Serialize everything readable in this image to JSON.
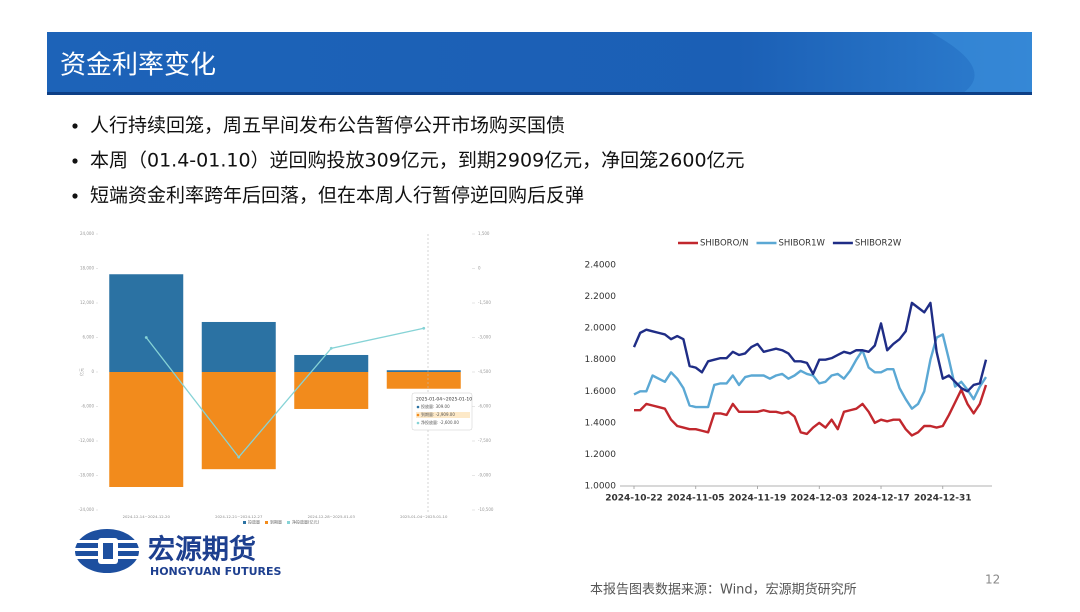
{
  "header": {
    "title": "资金利率变化"
  },
  "bullets": [
    "人行持续回笼，周五早间发布公告暂停公开市场购买国债",
    "本周（01.4-01.10）逆回购投放309亿元，到期2909亿元，净回笼2600亿元",
    "短端资金利率跨年后回落，但在本周人行暂停逆回购后反弹"
  ],
  "chart_data": [
    {
      "type": "bar",
      "ylabel": "亿元",
      "categories": [
        "2024-12-14~2024-12-20",
        "2024-12-21~2024-12-27",
        "2024-12-28~2025-01-03",
        "2025-01-04~2025-01-10"
      ],
      "series": [
        {
          "name": "投放量",
          "color": "#2b72a3",
          "values": [
            17000,
            8700,
            2960,
            309
          ]
        },
        {
          "name": "到期量",
          "color": "#f28b1c",
          "values": [
            -20000,
            -16900,
            -6430,
            -2909
          ]
        },
        {
          "name": "净投放量(亿元)",
          "color": "#86d3d6",
          "type": "line",
          "axis": "y2",
          "values": [
            -3000,
            -8200,
            -3470,
            -2600
          ]
        }
      ],
      "ylim": [
        -24000,
        24000
      ],
      "yticks": [
        {
          "value": 24000,
          "label": "24,000"
        },
        {
          "value": 18000,
          "label": "18,000"
        },
        {
          "value": 12000,
          "label": "12,000"
        },
        {
          "value": 6000,
          "label": "6,000"
        },
        0,
        {
          "value": -6000,
          "label": "-6,000"
        },
        {
          "value": -12000,
          "label": "-12,000"
        },
        {
          "value": -18000,
          "label": "-18,000"
        },
        {
          "value": -24000,
          "label": "-24,000"
        }
      ],
      "y2lim": [
        -10500,
        1500
      ],
      "y2ticks": [
        {
          "value": 1500,
          "label": "1,500"
        },
        0,
        {
          "value": -1500,
          "label": "-1,500"
        },
        {
          "value": -3000,
          "label": "-3,000"
        },
        {
          "value": -4500,
          "label": "-4,500"
        },
        {
          "value": -6000,
          "label": "-6,000"
        },
        {
          "value": -7500,
          "label": "-7,500"
        },
        {
          "value": -9000,
          "label": "-9,000"
        },
        {
          "value": -10500,
          "label": "-10,500"
        }
      ],
      "grid": false,
      "tooltip": {
        "title": "2025-01-04~2025-01-10",
        "items": [
          "投放量: 309.00",
          "到期量: -2,909.00",
          "净投放量: -2,600.00"
        ]
      }
    },
    {
      "type": "line",
      "categories": [
        "2024-10-22",
        null,
        null,
        null,
        null,
        null,
        null,
        null,
        null,
        null,
        "2024-11-05",
        null,
        null,
        null,
        null,
        null,
        null,
        null,
        null,
        null,
        "2024-11-19",
        null,
        null,
        null,
        null,
        null,
        null,
        null,
        null,
        null,
        "2024-12-03",
        null,
        null,
        null,
        null,
        null,
        null,
        null,
        null,
        null,
        "2024-12-17",
        null,
        null,
        null,
        null,
        null,
        null,
        null,
        null,
        null,
        "2024-12-31",
        null,
        null,
        null,
        null,
        null,
        null,
        null
      ],
      "series": [
        {
          "name": "SHIBORO/N",
          "color": "#c1272d",
          "values": [
            1.48,
            1.48,
            1.52,
            1.51,
            1.5,
            1.49,
            1.42,
            1.38,
            1.37,
            1.36,
            1.36,
            1.35,
            1.34,
            1.46,
            1.46,
            1.45,
            1.52,
            1.47,
            1.47,
            1.47,
            1.47,
            1.48,
            1.47,
            1.47,
            1.46,
            1.47,
            1.44,
            1.34,
            1.33,
            1.37,
            1.4,
            1.37,
            1.42,
            1.36,
            1.47,
            1.48,
            1.49,
            1.52,
            1.47,
            1.4,
            1.42,
            1.41,
            1.42,
            1.42,
            1.36,
            1.32,
            1.34,
            1.38,
            1.38,
            1.37,
            1.38,
            1.45,
            1.53,
            1.61,
            1.52,
            1.46,
            1.52,
            1.64
          ]
        },
        {
          "name": "SHIBOR1W",
          "color": "#5ba8d4",
          "values": [
            1.58,
            1.6,
            1.6,
            1.7,
            1.68,
            1.66,
            1.72,
            1.68,
            1.62,
            1.51,
            1.5,
            1.5,
            1.5,
            1.64,
            1.65,
            1.65,
            1.7,
            1.64,
            1.69,
            1.7,
            1.7,
            1.7,
            1.68,
            1.7,
            1.71,
            1.68,
            1.7,
            1.73,
            1.71,
            1.7,
            1.65,
            1.66,
            1.7,
            1.71,
            1.68,
            1.73,
            1.8,
            1.86,
            1.75,
            1.72,
            1.72,
            1.74,
            1.74,
            1.62,
            1.55,
            1.49,
            1.52,
            1.6,
            1.8,
            1.94,
            1.96,
            1.8,
            1.63,
            1.66,
            1.61,
            1.55,
            1.63,
            1.69
          ]
        },
        {
          "name": "SHIBOR2W",
          "color": "#1f2d86",
          "values": [
            1.88,
            1.97,
            1.99,
            1.98,
            1.97,
            1.96,
            1.93,
            1.95,
            1.93,
            1.76,
            1.75,
            1.72,
            1.79,
            1.8,
            1.81,
            1.81,
            1.85,
            1.83,
            1.84,
            1.88,
            1.9,
            1.85,
            1.86,
            1.87,
            1.86,
            1.84,
            1.79,
            1.79,
            1.78,
            1.71,
            1.8,
            1.8,
            1.81,
            1.83,
            1.85,
            1.84,
            1.86,
            1.86,
            1.85,
            1.89,
            2.03,
            1.86,
            1.9,
            1.93,
            1.98,
            2.16,
            2.13,
            2.1,
            2.16,
            1.85,
            1.68,
            1.7,
            1.66,
            1.62,
            1.6,
            1.64,
            1.65,
            1.8
          ]
        }
      ],
      "ylim": [
        1.0,
        2.4
      ],
      "yticks": [
        {
          "value": 2.4,
          "label": "2.4000"
        },
        {
          "value": 2.2,
          "label": "2.2000"
        },
        {
          "value": 2.0,
          "label": "2.0000"
        },
        {
          "value": 1.8,
          "label": "1.8000"
        },
        {
          "value": 1.6,
          "label": "1.6000"
        },
        {
          "value": 1.4,
          "label": "1.4000"
        },
        {
          "value": 1.2,
          "label": "1.2000"
        },
        {
          "value": 1.0,
          "label": "1.0000"
        }
      ],
      "grid": false,
      "legend": "top"
    }
  ],
  "logo": {
    "name": "宏源期货",
    "name_en": "HONGYUAN FUTURES"
  },
  "footer": {
    "source": "本报告图表数据来源：Wind，宏源期货研究所",
    "page": "12"
  }
}
